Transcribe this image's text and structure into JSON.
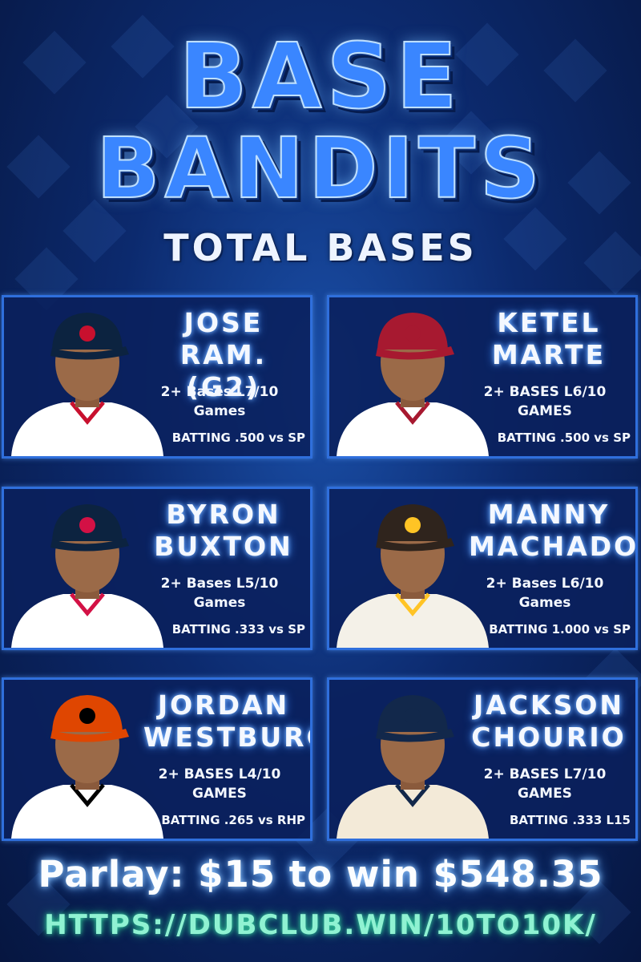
{
  "title_line1": "BASE",
  "title_line2": "BANDITS",
  "subtitle": "TOTAL BASES",
  "players": [
    {
      "name1": "JOSE",
      "name2": "RAM. (G2)",
      "stat1": "2+ Bases L7/10",
      "stat2": "Games",
      "batting": "BATTING .500 vs SP",
      "jersey": "#ffffff",
      "cap": "#0c2340",
      "trim": "#c8102e"
    },
    {
      "name1": "KETEL",
      "name2": "MARTE",
      "stat1": "2+ BASES L6/10",
      "stat2": "GAMES",
      "batting": "BATTING .500 vs SP",
      "jersey": "#ffffff",
      "cap": "#a71930",
      "trim": "#a71930"
    },
    {
      "name1": "BYRON",
      "name2": "BUXTON",
      "stat1": "2+ Bases L5/10",
      "stat2": "Games",
      "batting": "BATTING .333 vs SP",
      "jersey": "#ffffff",
      "cap": "#0c2340",
      "trim": "#d31145"
    },
    {
      "name1": "MANNY",
      "name2": "MACHADO",
      "stat1": "2+ Bases L6/10",
      "stat2": "Games",
      "batting": "BATTING 1.000 vs SP",
      "jersey": "#f4f1e8",
      "cap": "#2f241d",
      "trim": "#ffc425"
    },
    {
      "name1": "JORDAN",
      "name2": "WESTBURG",
      "stat1": "2+ BASES L4/10",
      "stat2": "GAMES",
      "batting": "BATTING .265 vs RHP",
      "jersey": "#ffffff",
      "cap": "#df4601",
      "trim": "#000000"
    },
    {
      "name1": "JACKSON",
      "name2": "CHOURIO",
      "stat1": "2+ BASES L7/10",
      "stat2": "GAMES",
      "batting": "BATTING .333 L15",
      "jersey": "#f3ead8",
      "cap": "#12284b",
      "trim": "#12284b"
    }
  ],
  "parlay": "Parlay: $15 to win $548.35",
  "link": "HTTPS://DUBCLUB.WIN/10TO10K/"
}
